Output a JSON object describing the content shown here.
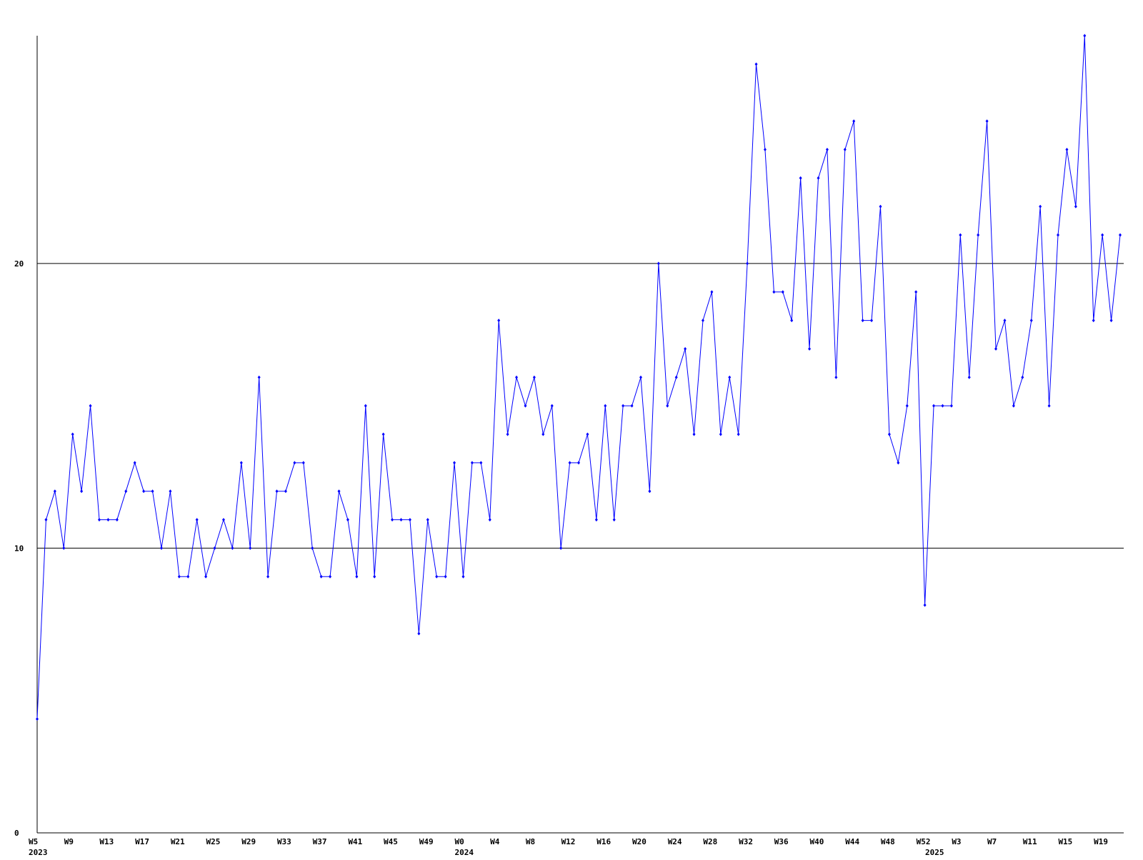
{
  "chart_data": {
    "type": "line",
    "color": "#0000ff",
    "grid": true,
    "ylim": [
      0,
      28
    ],
    "yticks": [
      0,
      10,
      20
    ],
    "categories": [
      "W5",
      null,
      null,
      null,
      "W9",
      null,
      null,
      null,
      "W13",
      null,
      null,
      null,
      "W17",
      null,
      null,
      null,
      "W21",
      null,
      null,
      null,
      "W25",
      null,
      null,
      null,
      "W29",
      null,
      null,
      null,
      "W33",
      null,
      null,
      null,
      "W37",
      null,
      null,
      null,
      "W41",
      null,
      null,
      null,
      "W45",
      null,
      null,
      null,
      "W49",
      null,
      null,
      null,
      "W0",
      null,
      null,
      null,
      "W4",
      null,
      null,
      null,
      "W8",
      null,
      null,
      null,
      "W12",
      null,
      null,
      null,
      "W16",
      null,
      null,
      null,
      "W20",
      null,
      null,
      null,
      "W24",
      null,
      null,
      null,
      "W28",
      null,
      null,
      null,
      "W32",
      null,
      null,
      null,
      "W36",
      null,
      null,
      null,
      "W40",
      null,
      null,
      null,
      "W44",
      null,
      null,
      null,
      "W48",
      null,
      null,
      null,
      "W52",
      null,
      null,
      null,
      "W3",
      null,
      null,
      null,
      "W7",
      null,
      null,
      null,
      "W11",
      null,
      null,
      null,
      "W15",
      null,
      null,
      null,
      "W19",
      null,
      null
    ],
    "year_labels": [
      "2023",
      null,
      null,
      null,
      null,
      null,
      null,
      null,
      null,
      null,
      null,
      null,
      null,
      null,
      null,
      null,
      null,
      null,
      null,
      null,
      null,
      null,
      null,
      null,
      null,
      null,
      null,
      null,
      null,
      null,
      null,
      null,
      null,
      null,
      null,
      null,
      null,
      null,
      null,
      null,
      null,
      null,
      null,
      null,
      null,
      null,
      null,
      null,
      "2024",
      null,
      null,
      null,
      null,
      null,
      null,
      null,
      null,
      null,
      null,
      null,
      null,
      null,
      null,
      null,
      null,
      null,
      null,
      null,
      null,
      null,
      null,
      null,
      null,
      null,
      null,
      null,
      null,
      null,
      null,
      null,
      null,
      null,
      null,
      null,
      null,
      null,
      null,
      null,
      null,
      null,
      null,
      null,
      null,
      null,
      null,
      null,
      null,
      null,
      null,
      null,
      null,
      "2025",
      null,
      null,
      null,
      null,
      null,
      null,
      null,
      null,
      null,
      null,
      null,
      null,
      null,
      null,
      null,
      null,
      null,
      null,
      null,
      null,
      null
    ],
    "values": [
      4,
      11,
      12,
      10,
      14,
      12,
      15,
      11,
      11,
      11,
      12,
      13,
      12,
      12,
      10,
      12,
      9,
      9,
      11,
      9,
      10,
      11,
      10,
      13,
      10,
      16,
      9,
      12,
      12,
      13,
      13,
      10,
      9,
      9,
      12,
      11,
      9,
      15,
      9,
      14,
      11,
      11,
      11,
      7,
      11,
      9,
      9,
      13,
      9,
      13,
      13,
      11,
      18,
      14,
      16,
      15,
      16,
      14,
      15,
      10,
      13,
      13,
      14,
      11,
      15,
      11,
      15,
      15,
      16,
      12,
      20,
      15,
      16,
      17,
      14,
      18,
      19,
      14,
      16,
      14,
      20,
      27,
      24,
      19,
      19,
      18,
      23,
      17,
      23,
      24,
      16,
      24,
      25,
      18,
      18,
      22,
      14,
      13,
      15,
      19,
      8,
      15,
      15,
      15,
      21,
      16,
      21,
      25,
      17,
      18,
      15,
      16,
      18,
      22,
      15,
      21,
      24,
      22,
      28,
      18,
      21,
      18,
      21
    ]
  }
}
